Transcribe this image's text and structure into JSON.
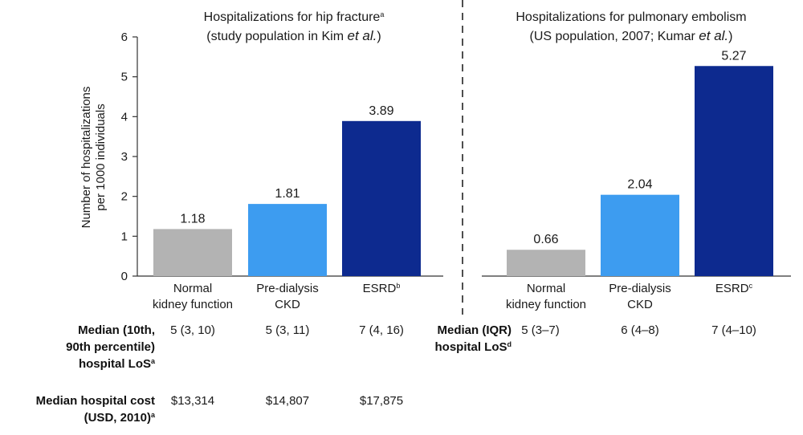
{
  "chart_data": [
    {
      "type": "bar",
      "title_parts": [
        {
          "text": "Hospitalizations for hip fracture",
          "sup": "a",
          "italic": []
        },
        {
          "text": "(study population in Kim ",
          "italic_suffix": "et al.",
          "tail": ")"
        }
      ],
      "categories": [
        {
          "lines": [
            "Normal",
            "kidney function"
          ],
          "sup": ""
        },
        {
          "lines": [
            "Pre-dialysis",
            "CKD"
          ],
          "sup": ""
        },
        {
          "lines": [
            "ESRD"
          ],
          "sup": "b"
        }
      ],
      "values": [
        1.18,
        1.81,
        3.89
      ],
      "colors": [
        "#b3b3b3",
        "#3d9cf0",
        "#0d2a8f"
      ],
      "ylabel": [
        "Number of hospitalizations",
        "per 1000 individuals"
      ],
      "ylim": [
        0,
        6
      ],
      "yticks": [
        0,
        1,
        2,
        3,
        4,
        5,
        6
      ]
    },
    {
      "type": "bar",
      "title_parts": [
        {
          "text": "Hospitalizations for pulmonary embolism",
          "sup": ""
        },
        {
          "text": "(US population, 2007; Kumar ",
          "italic_suffix": "et al.",
          "tail": ")"
        }
      ],
      "categories": [
        {
          "lines": [
            "Normal",
            "kidney function"
          ],
          "sup": ""
        },
        {
          "lines": [
            "Pre-dialysis",
            "CKD"
          ],
          "sup": ""
        },
        {
          "lines": [
            "ESRD"
          ],
          "sup": "c"
        }
      ],
      "values": [
        0.66,
        2.04,
        5.27
      ],
      "colors": [
        "#b3b3b3",
        "#3d9cf0",
        "#0d2a8f"
      ],
      "ylim": [
        0,
        6
      ]
    }
  ],
  "left_table": {
    "los_label": [
      "Median (10th,",
      "90th percentile)",
      "hospital LoS"
    ],
    "los_label_sup": "a",
    "los_values": [
      "5 (3, 10)",
      "5 (3, 11)",
      "7 (4, 16)"
    ],
    "cost_label": [
      "Median hospital cost",
      "(USD, 2010)"
    ],
    "cost_label_sup": "a",
    "cost_values": [
      "$13,314",
      "$14,807",
      "$17,875"
    ]
  },
  "right_table": {
    "los_label": [
      "Median (IQR)",
      "hospital LoS"
    ],
    "los_label_sup": "d",
    "los_values": [
      "5 (3–7)",
      "6 (4–8)",
      "7 (4–10)"
    ]
  }
}
